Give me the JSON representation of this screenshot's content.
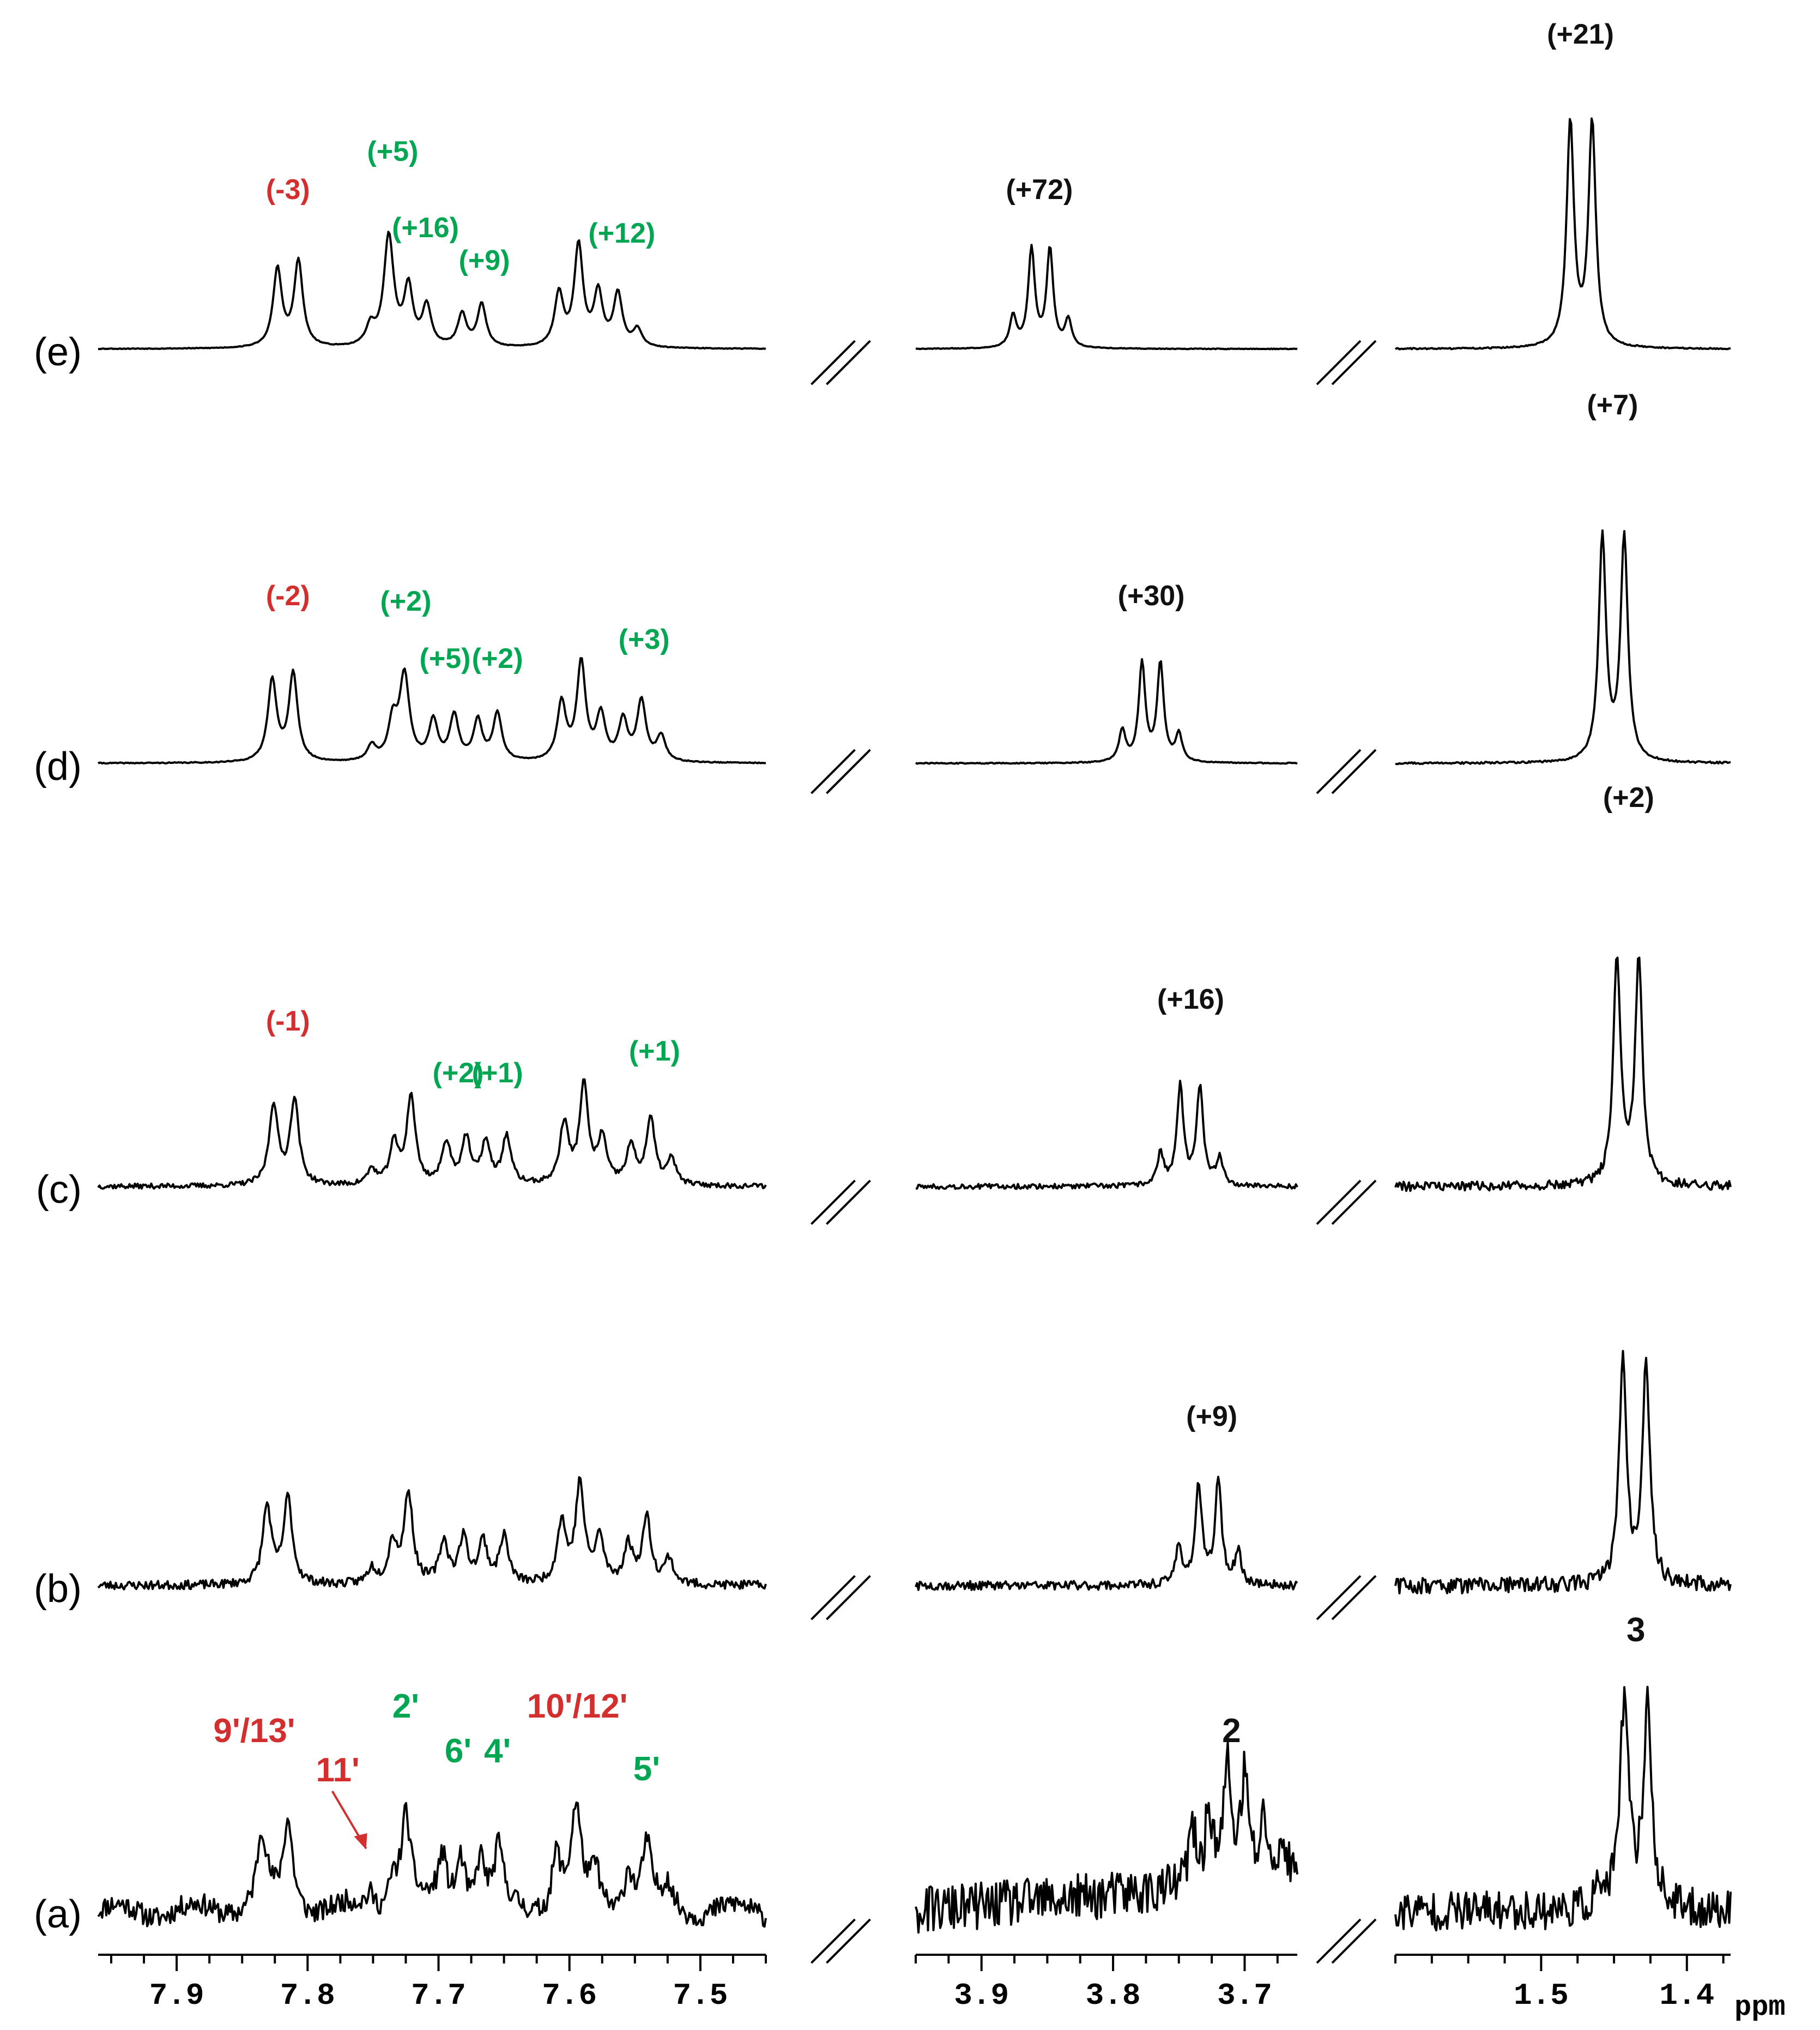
{
  "colors": {
    "red": "#d32f2f",
    "green": "#00a651",
    "black": "#111111"
  },
  "chart_data": {
    "type": "line",
    "title": "",
    "xlabel": "ppm",
    "stacked_traces": [
      "(a)",
      "(b)",
      "(c)",
      "(d)",
      "(e)"
    ],
    "panels": [
      {
        "name": "aromatic",
        "xlim": [
          7.96,
          7.45
        ],
        "ticks": [
          "7.9",
          "7.8",
          "7.7",
          "7.6",
          "7.5"
        ],
        "tick_values": [
          7.9,
          7.8,
          7.7,
          7.6,
          7.5
        ]
      },
      {
        "name": "methine",
        "xlim": [
          3.95,
          3.66
        ],
        "ticks": [
          "3.9",
          "3.8",
          "3.7"
        ],
        "tick_values": [
          3.9,
          3.8,
          3.7
        ]
      },
      {
        "name": "methyl",
        "xlim": [
          1.6,
          1.37
        ],
        "ticks": [
          "1.5",
          "1.4"
        ],
        "tick_values": [
          1.5,
          1.4
        ]
      }
    ],
    "assignments": [
      {
        "label": "9'/13'",
        "ppm": 7.822,
        "color": "red"
      },
      {
        "label": "11'",
        "ppm": 7.752,
        "color": "red"
      },
      {
        "label": "2'",
        "ppm": 7.725,
        "color": "green"
      },
      {
        "label": "6'",
        "ppm": 7.685,
        "color": "green"
      },
      {
        "label": "4'",
        "ppm": 7.655,
        "color": "green"
      },
      {
        "label": "10'/12'",
        "ppm": 7.594,
        "color": "red"
      },
      {
        "label": "5'",
        "ppm": 7.541,
        "color": "green"
      },
      {
        "label": "2",
        "ppm": 3.71,
        "color": "black"
      },
      {
        "label": "3",
        "ppm": 1.435,
        "color": "black"
      }
    ],
    "shift_annotations": [
      {
        "trace": "(b)",
        "panel": 1,
        "ppm": 3.725,
        "label": "(+9)",
        "color": "black"
      },
      {
        "trace": "(c)",
        "panel": 0,
        "ppm": 7.815,
        "label": "(-1)",
        "color": "red"
      },
      {
        "trace": "(c)",
        "panel": 0,
        "ppm": 7.685,
        "label": "(+2)",
        "color": "green"
      },
      {
        "trace": "(c)",
        "panel": 0,
        "ppm": 7.655,
        "label": "(+1)",
        "color": "green"
      },
      {
        "trace": "(c)",
        "panel": 0,
        "ppm": 7.535,
        "label": "(+1)",
        "color": "green"
      },
      {
        "trace": "(c)",
        "panel": 1,
        "ppm": 3.741,
        "label": "(+16)",
        "color": "black"
      },
      {
        "trace": "(c)",
        "panel": 2,
        "ppm": 1.44,
        "label": "(+2)",
        "color": "black"
      },
      {
        "trace": "(d)",
        "panel": 0,
        "ppm": 7.815,
        "label": "(-2)",
        "color": "red"
      },
      {
        "trace": "(d)",
        "panel": 0,
        "ppm": 7.725,
        "label": "(+2)",
        "color": "green"
      },
      {
        "trace": "(d)",
        "panel": 0,
        "ppm": 7.695,
        "label": "(+5)",
        "color": "green"
      },
      {
        "trace": "(d)",
        "panel": 0,
        "ppm": 7.655,
        "label": "(+2)",
        "color": "green"
      },
      {
        "trace": "(d)",
        "panel": 0,
        "ppm": 7.543,
        "label": "(+3)",
        "color": "green"
      },
      {
        "trace": "(d)",
        "panel": 1,
        "ppm": 3.771,
        "label": "(+30)",
        "color": "black"
      },
      {
        "trace": "(d)",
        "panel": 2,
        "ppm": 1.451,
        "label": "(+7)",
        "color": "black"
      },
      {
        "trace": "(e)",
        "panel": 0,
        "ppm": 7.815,
        "label": "(-3)",
        "color": "red"
      },
      {
        "trace": "(e)",
        "panel": 0,
        "ppm": 7.735,
        "label": "(+5)",
        "color": "green"
      },
      {
        "trace": "(e)",
        "panel": 0,
        "ppm": 7.71,
        "label": "(+16)",
        "color": "green"
      },
      {
        "trace": "(e)",
        "panel": 0,
        "ppm": 7.665,
        "label": "(+9)",
        "color": "green"
      },
      {
        "trace": "(e)",
        "panel": 0,
        "ppm": 7.56,
        "label": "(+12)",
        "color": "green"
      },
      {
        "trace": "(e)",
        "panel": 1,
        "ppm": 3.856,
        "label": "(+72)",
        "color": "black"
      },
      {
        "trace": "(e)",
        "panel": 2,
        "ppm": 1.473,
        "label": "(+21)",
        "color": "black"
      }
    ],
    "series": [
      {
        "name": "(a)",
        "noise": 0.09,
        "seed": 11,
        "baseline_slope": 0.5,
        "height": 0.5,
        "peaks": [
          [
            [
              7.835,
              0.62,
              0.0045
            ],
            [
              7.815,
              0.72,
              0.0045
            ],
            [
              7.752,
              0.12,
              0.004
            ],
            [
              7.735,
              0.25,
              0.004
            ],
            [
              7.725,
              0.78,
              0.0045
            ],
            [
              7.697,
              0.42,
              0.004
            ],
            [
              7.683,
              0.45,
              0.004
            ],
            [
              7.668,
              0.42,
              0.004
            ],
            [
              7.654,
              0.46,
              0.004
            ],
            [
              7.61,
              0.46,
              0.004
            ],
            [
              7.595,
              0.8,
              0.0045
            ],
            [
              7.58,
              0.32,
              0.004
            ],
            [
              7.555,
              0.35,
              0.004
            ],
            [
              7.541,
              0.52,
              0.004
            ],
            [
              7.525,
              0.2,
              0.004
            ]
          ],
          [
            [
              3.74,
              0.45,
              0.0035
            ],
            [
              3.727,
              0.6,
              0.0035
            ],
            [
              3.713,
              0.95,
              0.0035
            ],
            [
              3.7,
              0.85,
              0.0035
            ],
            [
              3.685,
              0.5,
              0.0035
            ],
            [
              3.67,
              0.3,
              0.0035
            ]
          ],
          [
            [
              1.443,
              0.95,
              0.0035
            ],
            [
              1.427,
              0.92,
              0.0035
            ],
            [
              1.46,
              0.08,
              0.004
            ]
          ]
        ]
      },
      {
        "name": "(b)",
        "noise": 0.035,
        "seed": 23,
        "baseline_slope": 0.0,
        "height": 0.95,
        "peaks": [
          [
            [
              7.831,
              0.62,
              0.004
            ],
            [
              7.815,
              0.68,
              0.004
            ],
            [
              7.751,
              0.12,
              0.004
            ],
            [
              7.735,
              0.32,
              0.004
            ],
            [
              7.723,
              0.72,
              0.004
            ],
            [
              7.696,
              0.33,
              0.004
            ],
            [
              7.681,
              0.36,
              0.004
            ],
            [
              7.666,
              0.33,
              0.004
            ],
            [
              7.65,
              0.38,
              0.004
            ],
            [
              7.606,
              0.48,
              0.004
            ],
            [
              7.592,
              0.78,
              0.004
            ],
            [
              7.577,
              0.36,
              0.004
            ],
            [
              7.555,
              0.3,
              0.004
            ],
            [
              7.541,
              0.52,
              0.004
            ],
            [
              7.524,
              0.2,
              0.004
            ]
          ],
          [
            [
              3.75,
              0.3,
              0.003
            ],
            [
              3.735,
              0.78,
              0.003
            ],
            [
              3.72,
              0.82,
              0.003
            ],
            [
              3.705,
              0.25,
              0.003
            ]
          ],
          [
            [
              1.444,
              0.98,
              0.003
            ],
            [
              1.428,
              0.98,
              0.003
            ]
          ]
        ]
      },
      {
        "name": "(c)",
        "noise": 0.02,
        "seed": 37,
        "baseline_slope": 0.0,
        "height": 0.95,
        "peaks": [
          [
            [
              7.826,
              0.64,
              0.004
            ],
            [
              7.81,
              0.68,
              0.004
            ],
            [
              7.751,
              0.12,
              0.004
            ],
            [
              7.734,
              0.32,
              0.004
            ],
            [
              7.721,
              0.7,
              0.004
            ],
            [
              7.694,
              0.33,
              0.004
            ],
            [
              7.679,
              0.36,
              0.004
            ],
            [
              7.664,
              0.33,
              0.004
            ],
            [
              7.648,
              0.38,
              0.004
            ],
            [
              7.604,
              0.48,
              0.004
            ],
            [
              7.589,
              0.78,
              0.004
            ],
            [
              7.575,
              0.36,
              0.004
            ],
            [
              7.553,
              0.3,
              0.004
            ],
            [
              7.538,
              0.52,
              0.004
            ],
            [
              7.522,
              0.2,
              0.004
            ]
          ],
          [
            [
              3.764,
              0.25,
              0.003
            ],
            [
              3.749,
              0.78,
              0.003
            ],
            [
              3.734,
              0.78,
              0.003
            ],
            [
              3.719,
              0.22,
              0.003
            ]
          ],
          [
            [
              1.448,
              0.98,
              0.003
            ],
            [
              1.433,
              0.98,
              0.003
            ]
          ]
        ]
      },
      {
        "name": "(d)",
        "noise": 0.004,
        "seed": 41,
        "baseline_slope": 0.0,
        "height": 0.95,
        "peaks": [
          [
            [
              7.827,
              0.65,
              0.004
            ],
            [
              7.811,
              0.7,
              0.004
            ],
            [
              7.751,
              0.12,
              0.004
            ],
            [
              7.735,
              0.3,
              0.004
            ],
            [
              7.726,
              0.68,
              0.0045
            ],
            [
              7.704,
              0.32,
              0.004
            ],
            [
              7.688,
              0.36,
              0.004
            ],
            [
              7.67,
              0.32,
              0.004
            ],
            [
              7.655,
              0.38,
              0.004
            ],
            [
              7.606,
              0.46,
              0.004
            ],
            [
              7.591,
              0.78,
              0.004
            ],
            [
              7.576,
              0.36,
              0.004
            ],
            [
              7.559,
              0.32,
              0.004
            ],
            [
              7.545,
              0.48,
              0.004
            ],
            [
              7.53,
              0.2,
              0.004
            ]
          ],
          [
            [
              3.793,
              0.25,
              0.003
            ],
            [
              3.778,
              0.78,
              0.003
            ],
            [
              3.764,
              0.78,
              0.003
            ],
            [
              3.75,
              0.22,
              0.003
            ]
          ],
          [
            [
              1.458,
              0.98,
              0.003
            ],
            [
              1.443,
              0.98,
              0.003
            ]
          ]
        ]
      },
      {
        "name": "(e)",
        "noise": 0.003,
        "seed": 53,
        "baseline_slope": 0.0,
        "height": 0.95,
        "peaks": [
          [
            [
              7.823,
              0.62,
              0.004
            ],
            [
              7.807,
              0.68,
              0.004
            ],
            [
              7.752,
              0.15,
              0.004
            ],
            [
              7.738,
              0.88,
              0.0045
            ],
            [
              7.723,
              0.46,
              0.004
            ],
            [
              7.709,
              0.32,
              0.004
            ],
            [
              7.682,
              0.26,
              0.004
            ],
            [
              7.667,
              0.34,
              0.004
            ],
            [
              7.608,
              0.42,
              0.004
            ],
            [
              7.593,
              0.8,
              0.004
            ],
            [
              7.578,
              0.42,
              0.004
            ],
            [
              7.563,
              0.42,
              0.004
            ],
            [
              7.548,
              0.14,
              0.004
            ]
          ],
          [
            [
              3.876,
              0.25,
              0.003
            ],
            [
              3.862,
              0.78,
              0.003
            ],
            [
              3.848,
              0.78,
              0.003
            ],
            [
              3.834,
              0.22,
              0.003
            ]
          ],
          [
            [
              1.48,
              0.98,
              0.003
            ],
            [
              1.465,
              0.98,
              0.003
            ]
          ]
        ]
      }
    ]
  }
}
